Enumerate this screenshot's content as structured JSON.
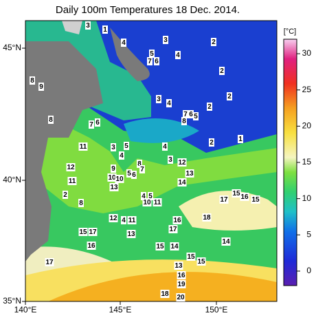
{
  "title": "Daily 100m Temperatures 18 Dec. 2014.",
  "colorbar": {
    "unit": "[°C]",
    "lim": [
      -2,
      32
    ],
    "ticks": [
      0,
      5,
      10,
      15,
      20,
      25,
      30
    ]
  },
  "x_labels": [
    "140°E",
    "145°E",
    "150°E"
  ],
  "y_labels": [
    "45°N",
    "40°N",
    "35°N"
  ],
  "contour_labels": [
    3,
    1,
    4,
    3,
    2,
    5,
    7,
    6,
    4,
    2,
    8,
    9,
    2,
    3,
    4,
    2,
    7,
    6,
    8,
    5,
    8,
    7,
    6,
    1,
    2,
    11,
    3,
    5,
    4,
    4,
    3,
    12,
    9,
    8,
    7,
    13,
    12,
    10,
    10,
    5,
    6,
    14,
    11,
    13,
    2,
    15,
    16,
    17,
    15,
    8,
    4,
    5,
    10,
    11,
    18,
    16,
    12,
    4,
    11,
    17,
    15,
    17,
    13,
    14,
    15,
    14,
    16,
    17,
    15,
    13,
    15,
    16,
    19,
    18,
    20
  ]
}
